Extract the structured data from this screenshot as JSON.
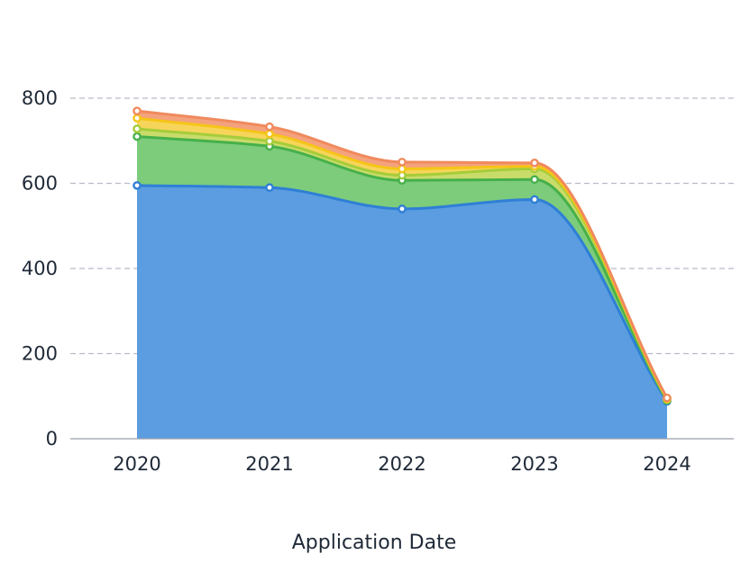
{
  "chart_data": {
    "type": "area",
    "stacked": true,
    "smooth": true,
    "title": "",
    "xlabel": "Application Date",
    "ylabel": "",
    "categories": [
      "2020",
      "2021",
      "2022",
      "2023",
      "2024"
    ],
    "yticks": [
      "0",
      "200",
      "400",
      "600",
      "800"
    ],
    "ylim": [
      0,
      900
    ],
    "grid": true,
    "series": [
      {
        "values": [
          595,
          590,
          540,
          562,
          88
        ],
        "color": "#2f7fd6",
        "fill": "#5b9de0"
      },
      {
        "values": [
          115,
          97,
          67,
          47,
          2
        ],
        "color": "#46b04a",
        "fill": "#7ccc7c"
      },
      {
        "values": [
          18,
          12,
          12,
          25,
          2
        ],
        "color": "#a6cc3a",
        "fill": "#c9dc6a"
      },
      {
        "values": [
          25,
          17,
          15,
          6,
          2
        ],
        "color": "#f5c518",
        "fill": "#f7d55a"
      },
      {
        "values": [
          17,
          17,
          16,
          8,
          2
        ],
        "color": "#f08a5d",
        "fill": "#f4a27e"
      }
    ]
  }
}
